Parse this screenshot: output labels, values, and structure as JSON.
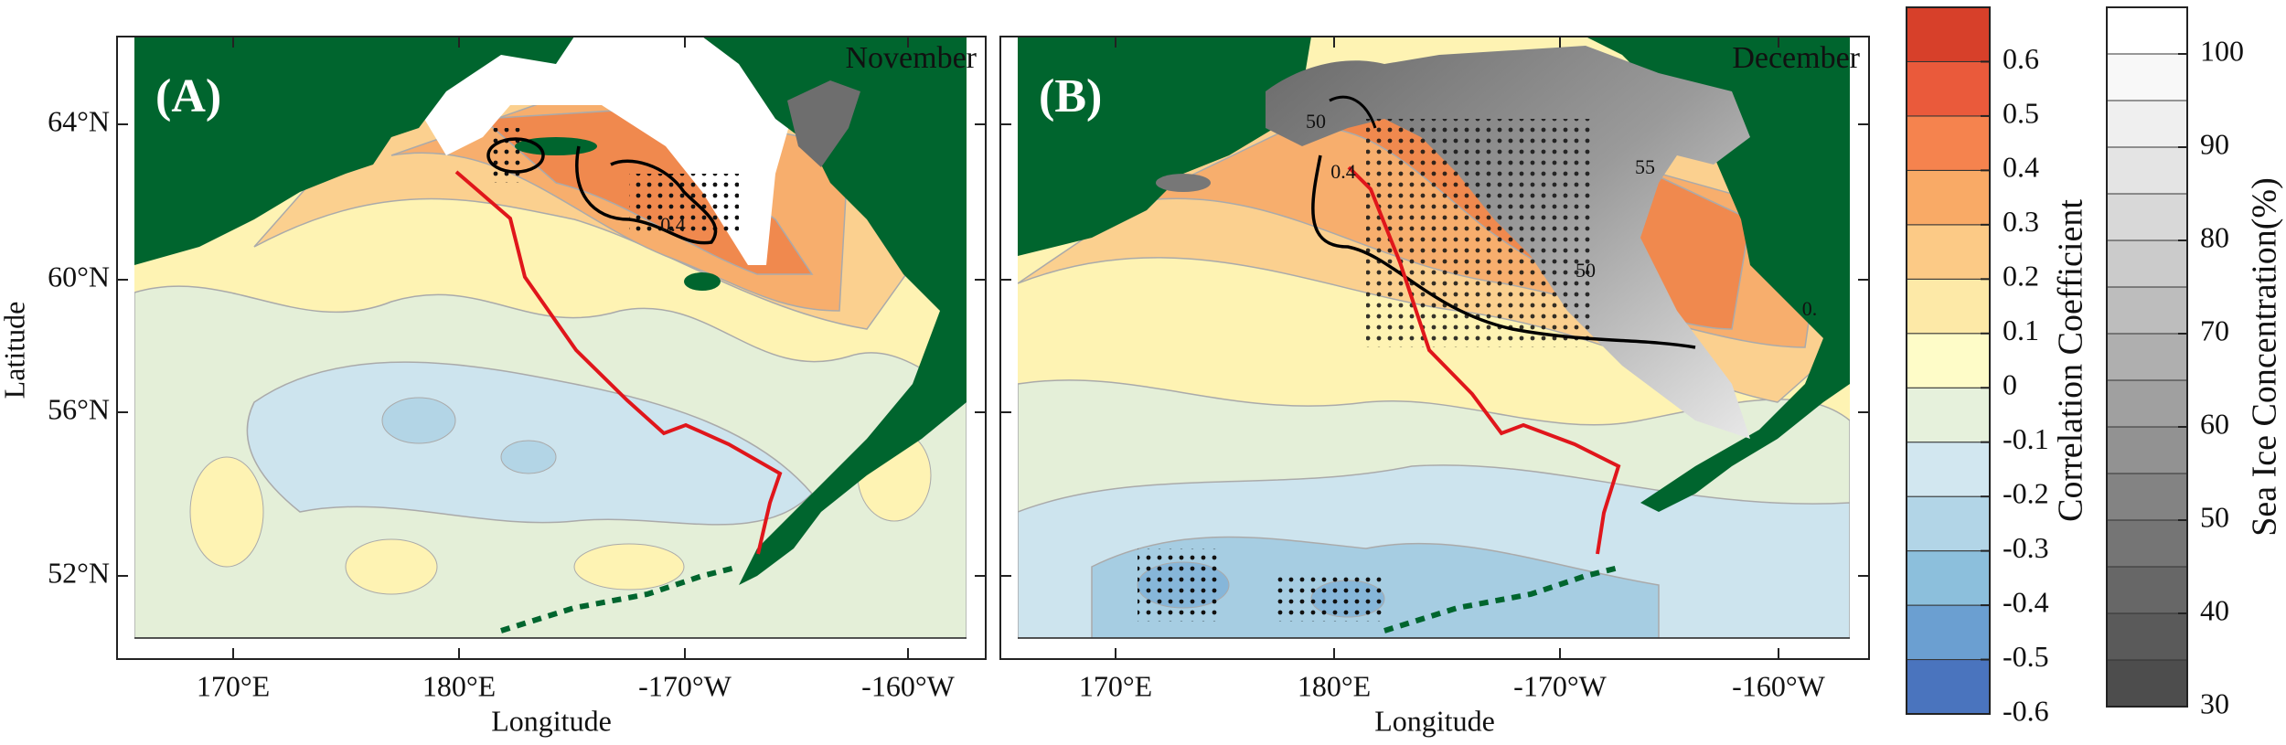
{
  "panels": [
    {
      "label": "(A)",
      "month": "November",
      "contour_labels": [
        "0.4"
      ]
    },
    {
      "label": "(B)",
      "month": "December",
      "contour_labels": [
        "50",
        "0.4",
        "50",
        "55",
        "0."
      ]
    }
  ],
  "axes": {
    "x_label": "Longitude",
    "y_label": "Latitude",
    "x_ticks": [
      "170°E",
      "180°E",
      "-170°W",
      "-160°W"
    ],
    "y_ticks": [
      "64°N",
      "60°N",
      "56°N",
      "52°N"
    ]
  },
  "colorbars": [
    {
      "title": "Correlation Coefficient",
      "ticks": [
        0.6,
        0.5,
        0.4,
        0.3,
        0.2,
        0.1,
        0,
        -0.1,
        -0.2,
        -0.3,
        -0.4,
        -0.5,
        -0.6
      ],
      "lim": [
        -0.6,
        0.7
      ],
      "colors": [
        "#4a74be",
        "#6b9fd1",
        "#8cbfdc",
        "#b2d5e7",
        "#d2e7f0",
        "#e6f1dc",
        "#fefcc8",
        "#fde9a7",
        "#fcca86",
        "#f9aa66",
        "#f5834e",
        "#ea5a3b",
        "#d7402a"
      ]
    },
    {
      "title": "Sea Ice Concentration(%)",
      "ticks": [
        100,
        90,
        80,
        70,
        60,
        50,
        40,
        30
      ],
      "lim": [
        30,
        105
      ],
      "colors": [
        "#4d4d4d",
        "#5a5a5a",
        "#676767",
        "#757575",
        "#838383",
        "#929292",
        "#a0a0a0",
        "#afafaf",
        "#bdbdbd",
        "#cbcbcb",
        "#d8d8d8",
        "#e4e4e4",
        "#efefef",
        "#f8f8f8",
        "#ffffff"
      ]
    }
  ]
}
